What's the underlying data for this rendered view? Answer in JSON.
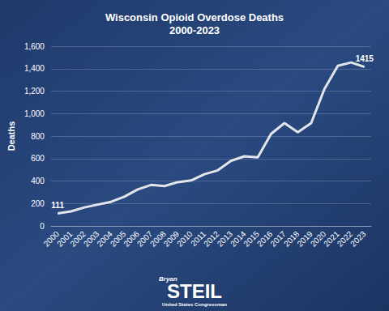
{
  "chart_data": {
    "type": "line",
    "title": "Wisconsin Opioid Overdose Deaths",
    "subtitle": "2000-2023",
    "y_label": "Deaths",
    "categories": [
      "2000",
      "2001",
      "2002",
      "2003",
      "2004",
      "2005",
      "2006",
      "2007",
      "2008",
      "2009",
      "2010",
      "2011",
      "2012",
      "2013",
      "2014",
      "2015",
      "2016",
      "2017",
      "2018",
      "2019",
      "2020",
      "2021",
      "2022",
      "2023"
    ],
    "values": [
      111,
      130,
      165,
      190,
      215,
      260,
      325,
      365,
      355,
      390,
      405,
      460,
      495,
      580,
      620,
      610,
      820,
      915,
      835,
      915,
      1220,
      1425,
      1455,
      1415
    ],
    "value_labels": [
      "111",
      null,
      null,
      null,
      null,
      null,
      null,
      null,
      null,
      null,
      null,
      null,
      null,
      null,
      null,
      null,
      null,
      null,
      null,
      null,
      null,
      null,
      null,
      "1415"
    ],
    "data_labels": true,
    "color": "#e3e5ea",
    "marker": "none",
    "line_style": "solid",
    "ylim": [
      0,
      1600
    ],
    "yticks": [
      0,
      200,
      400,
      600,
      800,
      {
        "value": 1000,
        "label": "1,000"
      },
      {
        "value": 1200,
        "label": "1,200"
      },
      {
        "value": 1400,
        "label": "1,400"
      },
      {
        "value": 1600,
        "label": "1,600"
      }
    ],
    "grid": true,
    "annotations": [
      "Bryan",
      "STEIL",
      "United States Congressman"
    ]
  }
}
